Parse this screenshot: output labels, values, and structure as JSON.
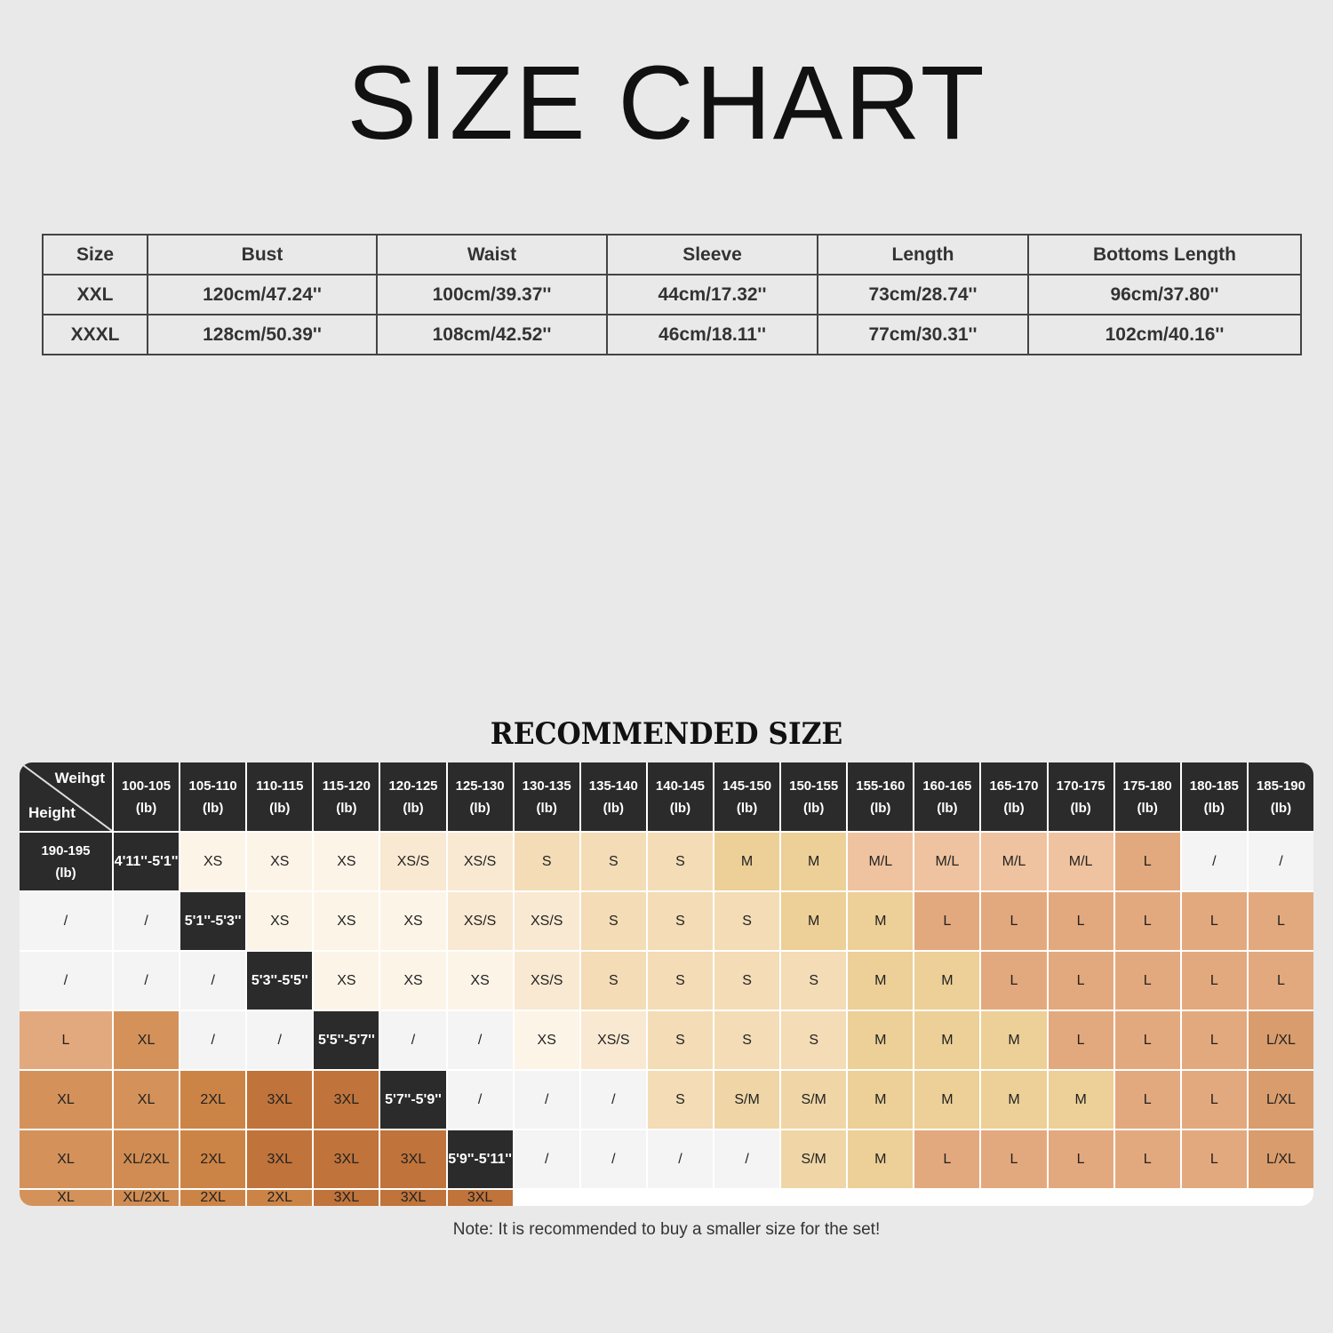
{
  "title": "SIZE CHART",
  "spec_table": {
    "headers": [
      "Size",
      "Bust",
      "Waist",
      "Sleeve",
      "Length",
      "Bottoms Length"
    ],
    "rows": [
      [
        "XXL",
        "120cm/47.24''",
        "100cm/39.37''",
        "44cm/17.32''",
        "73cm/28.74''",
        "96cm/37.80''"
      ],
      [
        "XXXL",
        "128cm/50.39''",
        "108cm/42.52''",
        "46cm/18.11''",
        "77cm/30.31''",
        "102cm/40.16''"
      ]
    ]
  },
  "recommended": {
    "title": "RECOMMENDED SIZE",
    "corner_weight": "Weihgt",
    "corner_height": "Height",
    "weights": [
      "100-105",
      "105-110",
      "110-115",
      "115-120",
      "120-125",
      "125-130",
      "130-135",
      "135-140",
      "140-145",
      "145-150",
      "150-155",
      "155-160",
      "160-165",
      "165-170",
      "170-175",
      "175-180",
      "180-185",
      "185-190",
      "190-195"
    ],
    "unit": "(lb)",
    "heights": [
      "4'11''-5'1''",
      "5'1''-5'3''",
      "5'3''-5'5''",
      "5'5''-5'7''",
      "5'7''-5'9''",
      "5'9''-5'11''"
    ],
    "cells": [
      [
        "XS",
        "XS",
        "XS",
        "XS/S",
        "XS/S",
        "S",
        "S",
        "S",
        "M",
        "M",
        "M/L",
        "M/L",
        "M/L",
        "M/L",
        "L",
        "/",
        "/",
        "/",
        "/"
      ],
      [
        "XS",
        "XS",
        "XS",
        "XS/S",
        "XS/S",
        "S",
        "S",
        "S",
        "M",
        "M",
        "L",
        "L",
        "L",
        "L",
        "L",
        "L",
        "/",
        "/",
        "/"
      ],
      [
        "XS",
        "XS",
        "XS",
        "XS/S",
        "S",
        "S",
        "S",
        "S",
        "M",
        "M",
        "L",
        "L",
        "L",
        "L",
        "L",
        "L",
        "XL",
        "/",
        "/"
      ],
      [
        "/",
        "/",
        "XS",
        "XS/S",
        "S",
        "S",
        "S",
        "M",
        "M",
        "M",
        "L",
        "L",
        "L",
        "L/XL",
        "XL",
        "XL",
        "2XL",
        "3XL",
        "3XL"
      ],
      [
        "/",
        "/",
        "/",
        "S",
        "S/M",
        "S/M",
        "M",
        "M",
        "M",
        "M",
        "L",
        "L",
        "L/XL",
        "XL",
        "XL/2XL",
        "2XL",
        "3XL",
        "3XL",
        "3XL"
      ],
      [
        "/",
        "/",
        "/",
        "/",
        "S/M",
        "M",
        "L",
        "L",
        "L",
        "L",
        "L",
        "L/XL",
        "XL",
        "XL/2XL",
        "2XL",
        "2XL",
        "3XL",
        "3XL",
        "3XL"
      ]
    ],
    "colors": {
      "XS": "#fdf4e8",
      "XS/S": "#f9e9d2",
      "S": "#f3dcb6",
      "S/M": "#f0d6a6",
      "M": "#ecd097",
      "M/L": "#efc39f",
      "L": "#e3a97e",
      "L/XL": "#d99c6c",
      "XL": "#d4925a",
      "XL/2XL": "#d08c52",
      "2XL": "#cc8446",
      "3XL": "#c0733a",
      "/": "#f4f4f4"
    },
    "note": "Note: It is recommended to buy a smaller size for the set!"
  }
}
